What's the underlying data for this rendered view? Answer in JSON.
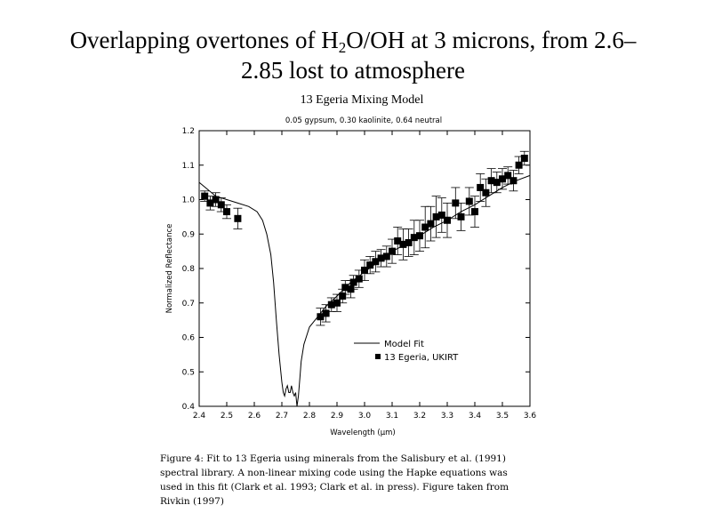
{
  "slide": {
    "title_part1": "Overlapping overtones of H",
    "title_sub": "2",
    "title_part2": "O/OH at 3 microns, from 2.6–",
    "title_line2": "2.85 lost to atmosphere"
  },
  "caption": {
    "line1": "Figure 4: Fit to 13 Egeria using minerals from the Salisbury et al. (1991)",
    "line2": "spectral library. A non-linear mixing code using the Hapke equations was",
    "line3": "used in this fit (Clark et al. 1993; Clark et al. in press). Figure taken from",
    "line4": "Rivkin (1997)"
  },
  "chart_data": {
    "type": "scatter",
    "title": "13 Egeria Mixing Model",
    "subtitle": "0.05 gypsum, 0.30 kaolinite, 0.64 neutral",
    "xlabel": "Wavelength (µm)",
    "ylabel": "Normalized Reflectance",
    "xlim": [
      2.4,
      3.6
    ],
    "ylim": [
      0.4,
      1.2
    ],
    "xticks": [
      "2.4",
      "2.5",
      "2.6",
      "2.7",
      "2.8",
      "2.9",
      "3.0",
      "3.1",
      "3.2",
      "3.3",
      "3.4",
      "3.5",
      "3.6"
    ],
    "yticks": [
      "0.4",
      "0.5",
      "0.6",
      "0.7",
      "0.8",
      "0.9",
      "1.0",
      "1.1",
      "1.2"
    ],
    "legend": [
      "Model Fit",
      "13 Egeria, UKIRT"
    ],
    "legend_position": "lower-right",
    "series": [
      {
        "name": "Model Fit",
        "kind": "line",
        "x": [
          2.4,
          2.43,
          2.46,
          2.5,
          2.54,
          2.58,
          2.61,
          2.63,
          2.645,
          2.66,
          2.67,
          2.68,
          2.69,
          2.7,
          2.705,
          2.71,
          2.715,
          2.72,
          2.725,
          2.73,
          2.735,
          2.74,
          2.745,
          2.75,
          2.755,
          2.76,
          2.765,
          2.77,
          2.78,
          2.8,
          2.83,
          2.86,
          2.9,
          2.95,
          3.0,
          3.05,
          3.1,
          3.15,
          3.2,
          3.25,
          3.3,
          3.35,
          3.4,
          3.45,
          3.5,
          3.55,
          3.6
        ],
        "y": [
          1.05,
          1.03,
          1.01,
          1.0,
          0.99,
          0.98,
          0.965,
          0.94,
          0.9,
          0.84,
          0.76,
          0.65,
          0.55,
          0.47,
          0.44,
          0.43,
          0.45,
          0.46,
          0.44,
          0.44,
          0.46,
          0.44,
          0.43,
          0.44,
          0.4,
          0.43,
          0.48,
          0.53,
          0.58,
          0.63,
          0.66,
          0.69,
          0.72,
          0.76,
          0.79,
          0.82,
          0.85,
          0.87,
          0.895,
          0.92,
          0.94,
          0.965,
          0.985,
          1.01,
          1.035,
          1.055,
          1.07
        ]
      },
      {
        "name": "13 Egeria, UKIRT",
        "kind": "points",
        "points": [
          {
            "x": 2.42,
            "y": 1.01,
            "err": 0.015
          },
          {
            "x": 2.44,
            "y": 0.99,
            "err": 0.02
          },
          {
            "x": 2.46,
            "y": 1.0,
            "err": 0.02
          },
          {
            "x": 2.48,
            "y": 0.985,
            "err": 0.02
          },
          {
            "x": 2.5,
            "y": 0.965,
            "err": 0.02
          },
          {
            "x": 2.54,
            "y": 0.945,
            "err": 0.03
          },
          {
            "x": 2.84,
            "y": 0.66,
            "err": 0.025
          },
          {
            "x": 2.86,
            "y": 0.67,
            "err": 0.025
          },
          {
            "x": 2.88,
            "y": 0.695,
            "err": 0.02
          },
          {
            "x": 2.9,
            "y": 0.7,
            "err": 0.025
          },
          {
            "x": 2.92,
            "y": 0.72,
            "err": 0.02
          },
          {
            "x": 2.93,
            "y": 0.745,
            "err": 0.02
          },
          {
            "x": 2.95,
            "y": 0.74,
            "err": 0.025
          },
          {
            "x": 2.96,
            "y": 0.76,
            "err": 0.02
          },
          {
            "x": 2.98,
            "y": 0.77,
            "err": 0.025
          },
          {
            "x": 3.0,
            "y": 0.795,
            "err": 0.03
          },
          {
            "x": 3.02,
            "y": 0.81,
            "err": 0.025
          },
          {
            "x": 3.04,
            "y": 0.82,
            "err": 0.03
          },
          {
            "x": 3.06,
            "y": 0.83,
            "err": 0.025
          },
          {
            "x": 3.08,
            "y": 0.835,
            "err": 0.03
          },
          {
            "x": 3.1,
            "y": 0.85,
            "err": 0.035
          },
          {
            "x": 3.12,
            "y": 0.88,
            "err": 0.04
          },
          {
            "x": 3.14,
            "y": 0.87,
            "err": 0.045
          },
          {
            "x": 3.16,
            "y": 0.875,
            "err": 0.04
          },
          {
            "x": 3.18,
            "y": 0.89,
            "err": 0.05
          },
          {
            "x": 3.2,
            "y": 0.895,
            "err": 0.045
          },
          {
            "x": 3.22,
            "y": 0.92,
            "err": 0.06
          },
          {
            "x": 3.24,
            "y": 0.93,
            "err": 0.05
          },
          {
            "x": 3.26,
            "y": 0.95,
            "err": 0.06
          },
          {
            "x": 3.28,
            "y": 0.955,
            "err": 0.05
          },
          {
            "x": 3.3,
            "y": 0.94,
            "err": 0.05
          },
          {
            "x": 3.33,
            "y": 0.99,
            "err": 0.045
          },
          {
            "x": 3.35,
            "y": 0.95,
            "err": 0.04
          },
          {
            "x": 3.38,
            "y": 0.995,
            "err": 0.04
          },
          {
            "x": 3.4,
            "y": 0.965,
            "err": 0.045
          },
          {
            "x": 3.42,
            "y": 1.035,
            "err": 0.04
          },
          {
            "x": 3.44,
            "y": 1.02,
            "err": 0.04
          },
          {
            "x": 3.46,
            "y": 1.055,
            "err": 0.035
          },
          {
            "x": 3.48,
            "y": 1.05,
            "err": 0.03
          },
          {
            "x": 3.5,
            "y": 1.06,
            "err": 0.03
          },
          {
            "x": 3.52,
            "y": 1.07,
            "err": 0.025
          },
          {
            "x": 3.54,
            "y": 1.055,
            "err": 0.03
          },
          {
            "x": 3.56,
            "y": 1.1,
            "err": 0.025
          },
          {
            "x": 3.58,
            "y": 1.12,
            "err": 0.02
          }
        ]
      }
    ]
  }
}
